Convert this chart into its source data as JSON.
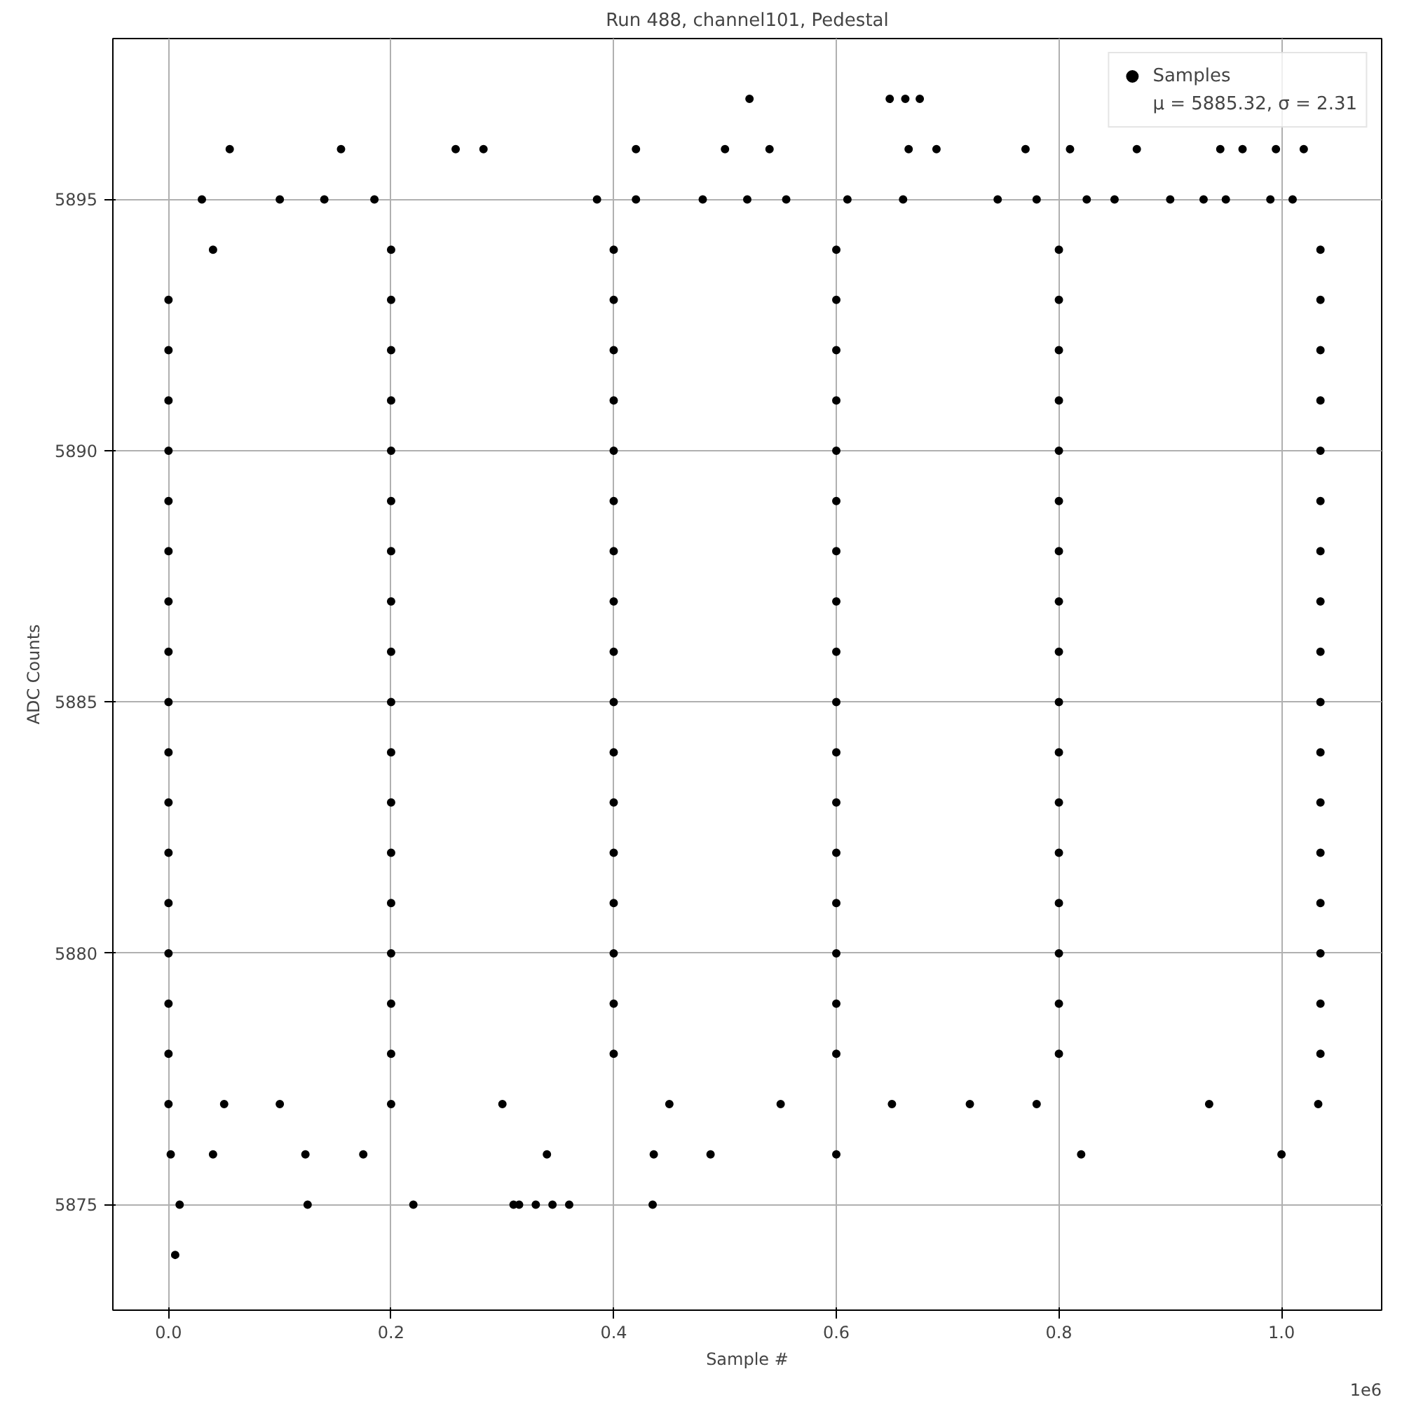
{
  "chart_data": {
    "type": "scatter",
    "title": "Run 488, channel101, Pedestal",
    "xlabel": "Sample #",
    "ylabel": "ADC Counts",
    "annotations": [
      "μ = 5885.32, σ = 2.31",
      "1e6"
    ],
    "xlim": [
      -0.05,
      1.09
    ],
    "xticks": [
      {
        "value": 0,
        "label": "0.0"
      },
      0.2,
      0.4,
      0.6,
      0.8,
      {
        "value": 1,
        "label": "1.0"
      }
    ],
    "ylim": [
      5872.9,
      5898.2
    ],
    "yticks": [
      5875,
      5880,
      5885,
      5890,
      5895
    ],
    "grid": true,
    "legend": "top right",
    "marker": "circle",
    "series": [
      {
        "name": "Samples",
        "color": "#000000",
        "x": [
          0.006,
          0.01,
          0.125,
          0.22,
          0.31,
          0.315,
          0.33,
          0.345,
          0.36,
          0.435,
          0.002,
          0.04,
          0.123,
          0.175,
          0.34,
          0.436,
          0.487,
          0.6,
          0.82,
          1.0,
          0,
          0.05,
          0.1,
          0.2,
          0.3,
          0.45,
          0.55,
          0.65,
          0.72,
          0.78,
          0.935,
          1.033,
          0,
          0.2,
          0.4,
          0.6,
          0.8,
          1.035,
          0,
          0.2,
          0.4,
          0.6,
          0.8,
          1.035,
          0,
          0.2,
          0.4,
          0.6,
          0.8,
          1.035,
          0,
          0.2,
          0.4,
          0.6,
          0.8,
          1.035,
          0,
          0.2,
          0.4,
          0.6,
          0.8,
          1.035,
          0,
          0.2,
          0.4,
          0.6,
          0.8,
          1.035,
          0,
          0.2,
          0.4,
          0.6,
          0.8,
          1.035,
          0,
          0.2,
          0.4,
          0.6,
          0.8,
          1.035,
          0,
          0.2,
          0.4,
          0.6,
          0.8,
          1.035,
          0,
          0.2,
          0.4,
          0.6,
          0.8,
          1.035,
          0,
          0.2,
          0.4,
          0.6,
          0.8,
          1.035,
          0,
          0.2,
          0.4,
          0.6,
          0.8,
          1.035,
          0,
          0.2,
          0.4,
          0.6,
          0.8,
          1.035,
          0,
          0.2,
          0.4,
          0.6,
          0.8,
          1.035,
          0,
          0.2,
          0.4,
          0.6,
          0.8,
          1.035,
          0,
          0.2,
          0.4,
          0.6,
          0.8,
          1.035,
          0.04,
          0.2,
          0.4,
          0.6,
          0.8,
          1.035,
          0.03,
          0.1,
          0.14,
          0.185,
          0.385,
          0.42,
          0.48,
          0.52,
          0.555,
          0.61,
          0.66,
          0.745,
          0.78,
          0.825,
          0.85,
          0.9,
          0.93,
          0.95,
          0.99,
          1.01,
          0.055,
          0.155,
          0.258,
          0.283,
          0.42,
          0.5,
          0.54,
          0.665,
          0.69,
          0.77,
          0.81,
          0.87,
          0.945,
          0.965,
          0.995,
          1.02,
          0.522,
          0.648,
          0.662,
          0.675
        ],
        "values": [
          5874,
          5875,
          5875,
          5875,
          5875,
          5875,
          5875,
          5875,
          5875,
          5875,
          5876,
          5876,
          5876,
          5876,
          5876,
          5876,
          5876,
          5876,
          5876,
          5876,
          5877,
          5877,
          5877,
          5877,
          5877,
          5877,
          5877,
          5877,
          5877,
          5877,
          5877,
          5877,
          5878,
          5878,
          5878,
          5878,
          5878,
          5878,
          5879,
          5879,
          5879,
          5879,
          5879,
          5879,
          5880,
          5880,
          5880,
          5880,
          5880,
          5880,
          5881,
          5881,
          5881,
          5881,
          5881,
          5881,
          5882,
          5882,
          5882,
          5882,
          5882,
          5882,
          5883,
          5883,
          5883,
          5883,
          5883,
          5883,
          5884,
          5884,
          5884,
          5884,
          5884,
          5884,
          5885,
          5885,
          5885,
          5885,
          5885,
          5885,
          5886,
          5886,
          5886,
          5886,
          5886,
          5886,
          5887,
          5887,
          5887,
          5887,
          5887,
          5887,
          5888,
          5888,
          5888,
          5888,
          5888,
          5888,
          5889,
          5889,
          5889,
          5889,
          5889,
          5889,
          5890,
          5890,
          5890,
          5890,
          5890,
          5890,
          5891,
          5891,
          5891,
          5891,
          5891,
          5891,
          5892,
          5892,
          5892,
          5892,
          5892,
          5892,
          5893,
          5893,
          5893,
          5893,
          5893,
          5893,
          5894,
          5894,
          5894,
          5894,
          5894,
          5894,
          5895,
          5895,
          5895,
          5895,
          5895,
          5895,
          5895,
          5895,
          5895,
          5895,
          5895,
          5895,
          5895,
          5895,
          5895,
          5895,
          5895,
          5895,
          5895,
          5895,
          5896,
          5896,
          5896,
          5896,
          5896,
          5896,
          5896,
          5896,
          5896,
          5896,
          5896,
          5896,
          5896,
          5896,
          5896,
          5896,
          5897,
          5897,
          5897,
          5897
        ]
      }
    ]
  }
}
